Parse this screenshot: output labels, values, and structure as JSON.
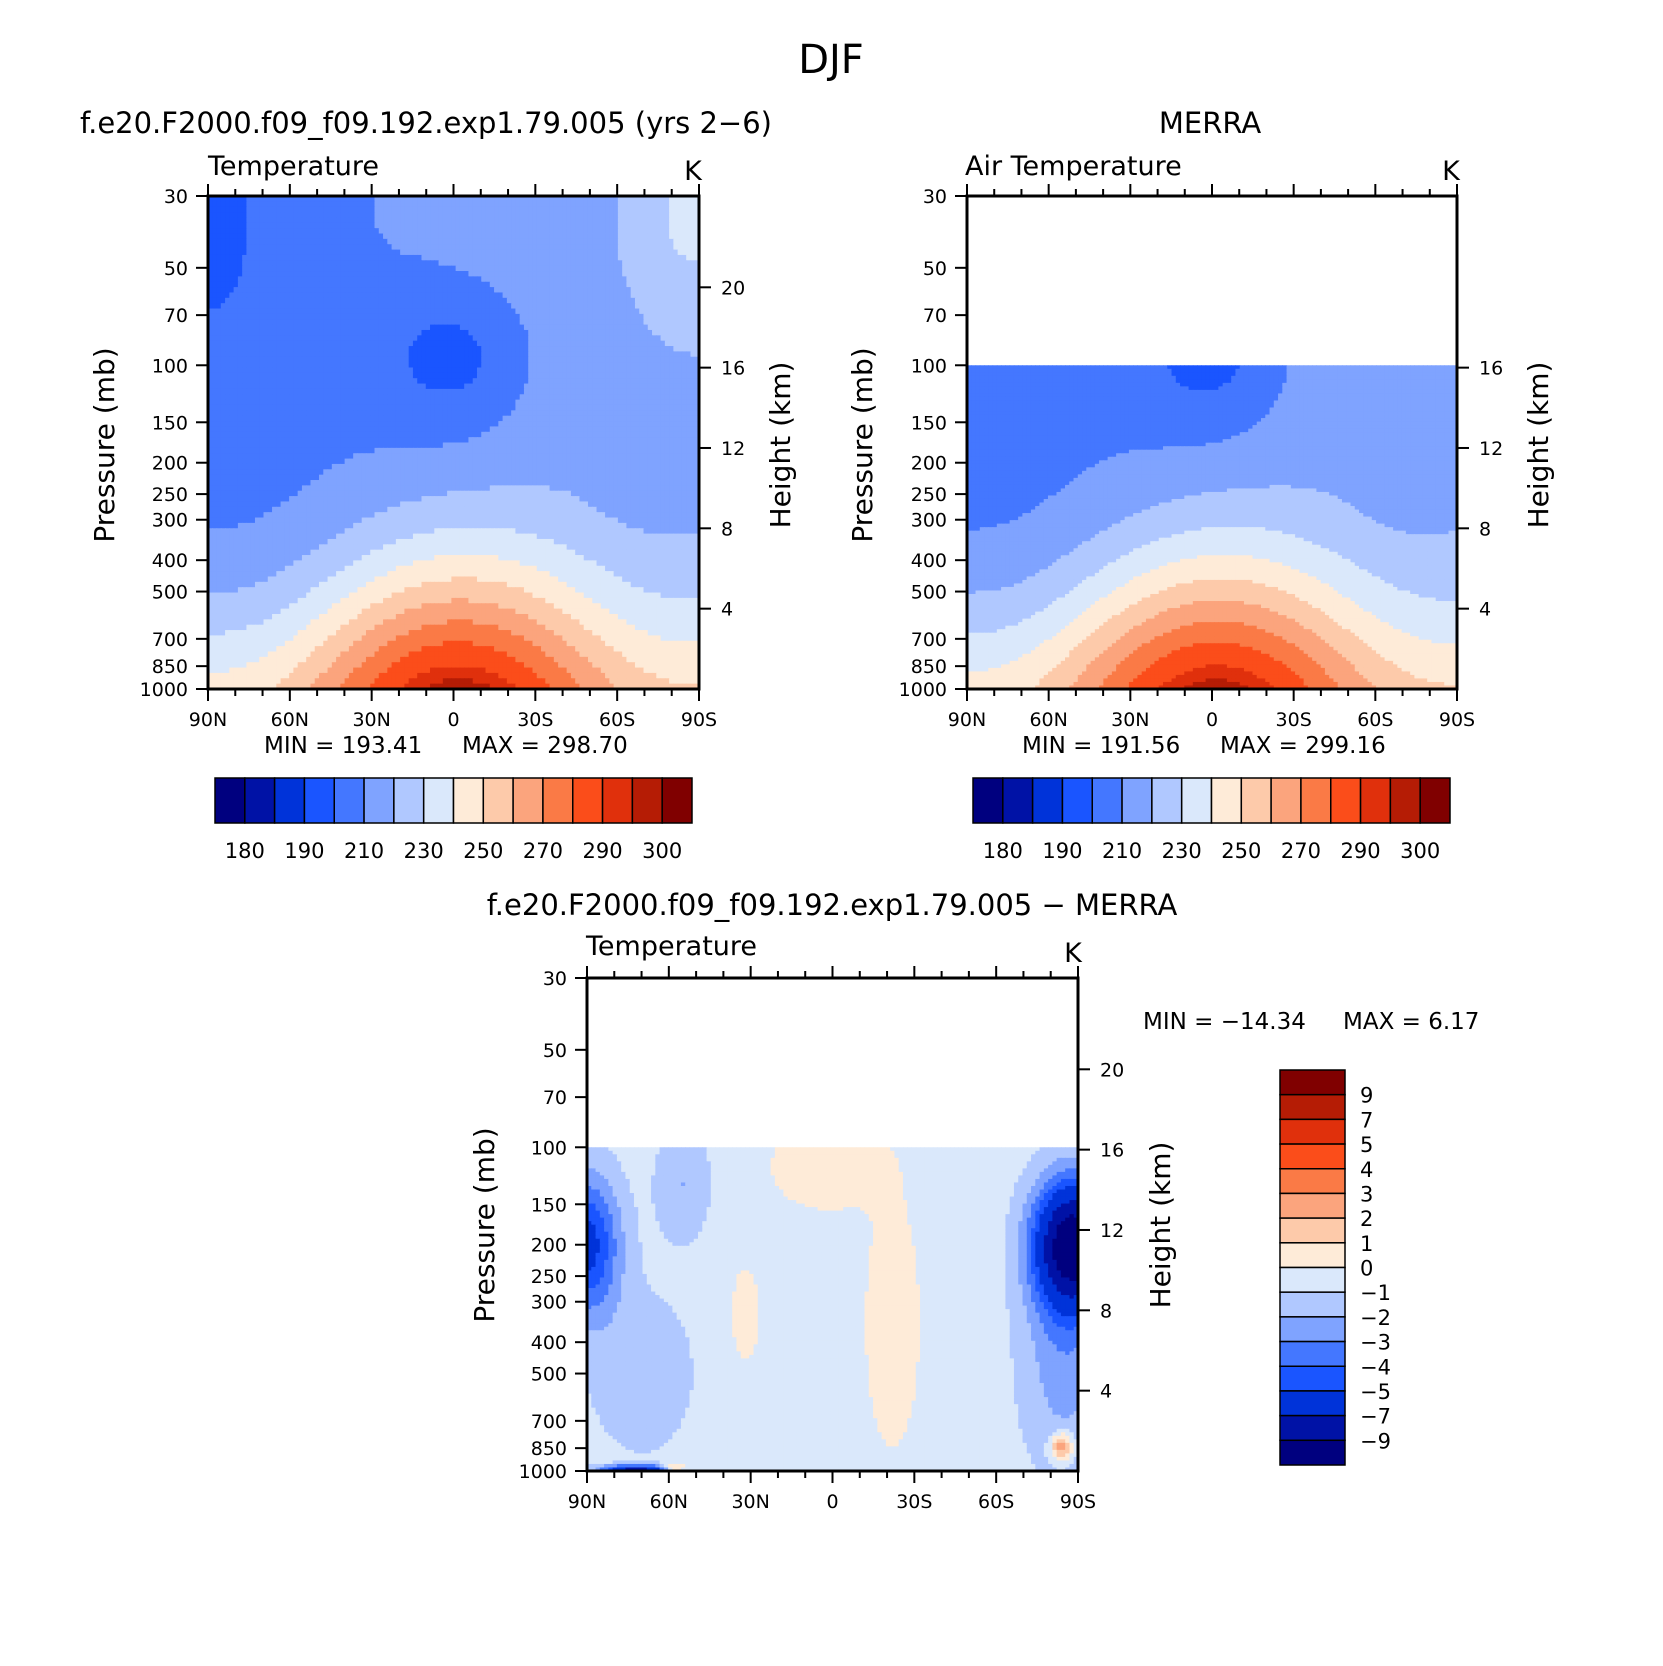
{
  "figure": {
    "suptitle": "DJF"
  },
  "chart_data": [
    {
      "type": "heatmap",
      "title": "f.e20.F2000.f09_f09.192.exp1.79.005 (yrs 2−6)",
      "subtitle": "Temperature",
      "units": "K",
      "ylabel": "Pressure (mb)",
      "ylabel_right": "Height (km)",
      "x_ticks": [
        "90N",
        "60N",
        "30N",
        "0",
        "30S",
        "60S",
        "90S"
      ],
      "y_ticks": [
        "30",
        "50",
        "70",
        "100",
        "150",
        "200",
        "250",
        "300",
        "400",
        "500",
        "700",
        "850",
        "1000"
      ],
      "y_ticks_right": [
        "20",
        "16",
        "12",
        "8",
        "4"
      ],
      "min_label": "MIN = 193.41",
      "max_label": "MAX = 298.70",
      "ylim": [
        1000,
        30
      ],
      "top_mb": 30,
      "colorbar_labels": [
        "180",
        "190",
        "210",
        "230",
        "250",
        "270",
        "290",
        "300"
      ],
      "levels": [
        180,
        185,
        190,
        200,
        210,
        220,
        230,
        240,
        250,
        260,
        270,
        280,
        290,
        295,
        300
      ],
      "colors": [
        "#00007f",
        "#0012a6",
        "#0033d9",
        "#1a55ff",
        "#4477ff",
        "#7fa3ff",
        "#b0c8ff",
        "#dae8fb",
        "#feebd8",
        "#fdcaaa",
        "#fba47d",
        "#fa7a46",
        "#fb4d1a",
        "#e0300c",
        "#b51c05",
        "#800000"
      ]
    },
    {
      "type": "heatmap",
      "title": "MERRA",
      "subtitle": "Air Temperature",
      "units": "K",
      "ylabel": "Pressure (mb)",
      "ylabel_right": "Height (km)",
      "x_ticks": [
        "90N",
        "60N",
        "30N",
        "0",
        "30S",
        "60S",
        "90S"
      ],
      "y_ticks": [
        "30",
        "50",
        "70",
        "100",
        "150",
        "200",
        "250",
        "300",
        "400",
        "500",
        "700",
        "850",
        "1000"
      ],
      "y_ticks_right": [
        "16",
        "12",
        "8",
        "4"
      ],
      "min_label": "MIN = 191.56",
      "max_label": "MAX = 299.16",
      "ylim": [
        1000,
        30
      ],
      "top_mb": 100,
      "colorbar_labels": [
        "180",
        "190",
        "210",
        "230",
        "250",
        "270",
        "290",
        "300"
      ],
      "levels": [
        180,
        185,
        190,
        200,
        210,
        220,
        230,
        240,
        250,
        260,
        270,
        280,
        290,
        295,
        300
      ],
      "colors": [
        "#00007f",
        "#0012a6",
        "#0033d9",
        "#1a55ff",
        "#4477ff",
        "#7fa3ff",
        "#b0c8ff",
        "#dae8fb",
        "#feebd8",
        "#fdcaaa",
        "#fba47d",
        "#fa7a46",
        "#fb4d1a",
        "#e0300c",
        "#b51c05",
        "#800000"
      ]
    },
    {
      "type": "heatmap",
      "title": "f.e20.F2000.f09_f09.192.exp1.79.005 − MERRA",
      "subtitle": "Temperature",
      "units": "K",
      "ylabel": "Pressure (mb)",
      "ylabel_right": "Height (km)",
      "x_ticks": [
        "90N",
        "60N",
        "30N",
        "0",
        "30S",
        "60S",
        "90S"
      ],
      "y_ticks": [
        "30",
        "50",
        "70",
        "100",
        "150",
        "200",
        "250",
        "300",
        "400",
        "500",
        "700",
        "850",
        "1000"
      ],
      "y_ticks_right": [
        "20",
        "16",
        "12",
        "8",
        "4"
      ],
      "min_label": "MIN = −14.34",
      "max_label": "MAX = 6.17",
      "ylim": [
        1000,
        30
      ],
      "top_mb": 100,
      "colorbar_labels": [
        "9",
        "7",
        "5",
        "4",
        "3",
        "2",
        "1",
        "0",
        "−1",
        "−2",
        "−3",
        "−4",
        "−5",
        "−7",
        "−9"
      ],
      "levels": [
        9,
        7,
        5,
        4,
        3,
        2,
        1,
        0,
        -1,
        -2,
        -3,
        -4,
        -5,
        -7,
        -9
      ],
      "colors": [
        "#800000",
        "#b51c05",
        "#e0300c",
        "#fb4d1a",
        "#fa7a46",
        "#fba47d",
        "#fdcaaa",
        "#feebd8",
        "#dae8fb",
        "#b0c8ff",
        "#7fa3ff",
        "#4477ff",
        "#1a55ff",
        "#0033d9",
        "#0012a6",
        "#00007f"
      ]
    }
  ]
}
